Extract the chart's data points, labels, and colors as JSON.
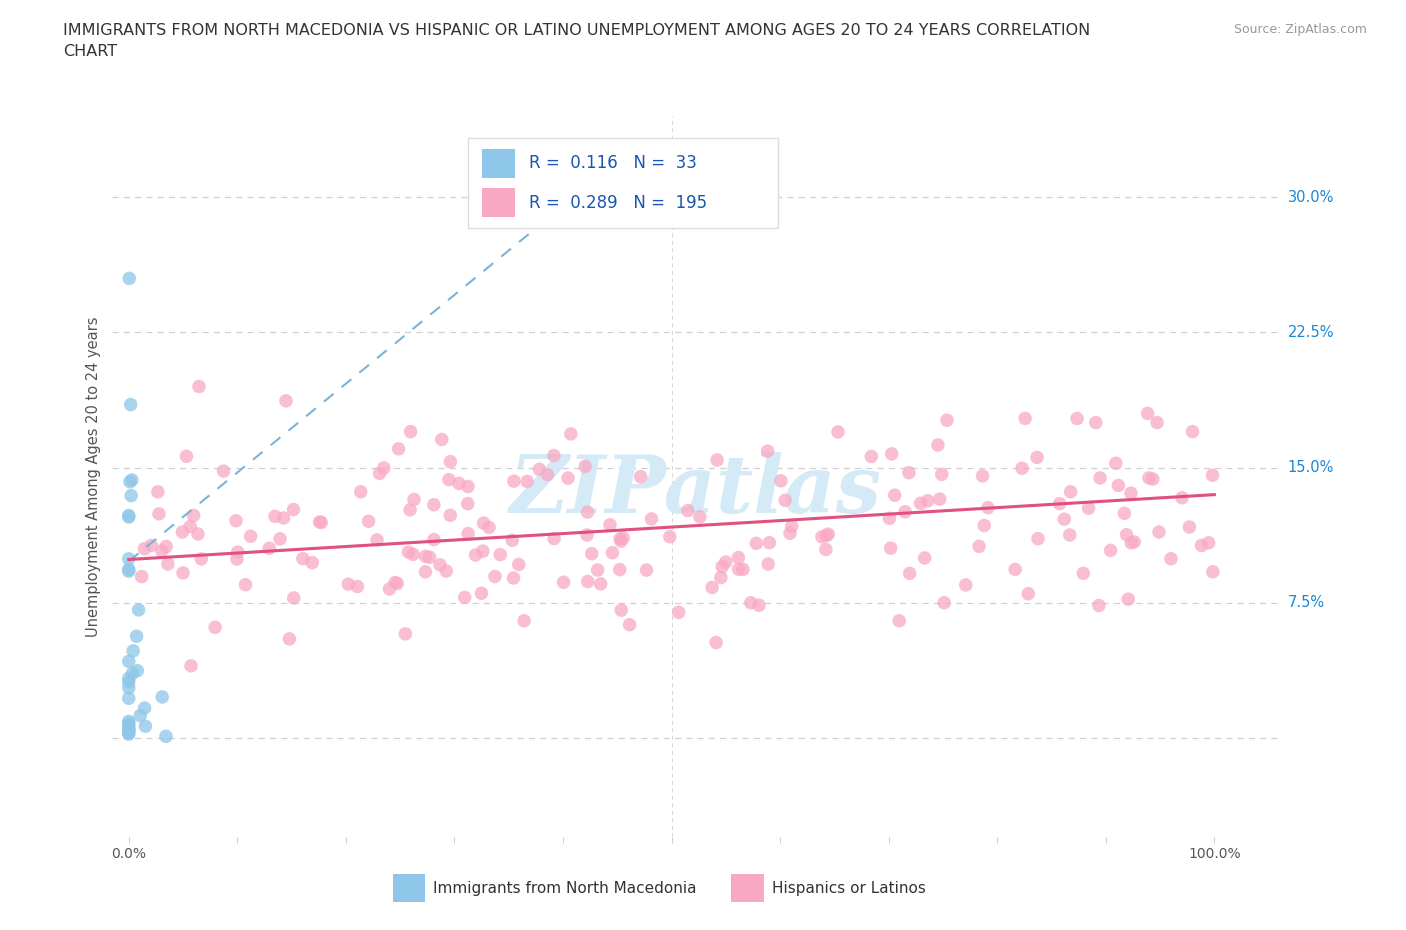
{
  "title": "IMMIGRANTS FROM NORTH MACEDONIA VS HISPANIC OR LATINO UNEMPLOYMENT AMONG AGES 20 TO 24 YEARS CORRELATION\nCHART",
  "source": "Source: ZipAtlas.com",
  "ylabel": "Unemployment Among Ages 20 to 24 years",
  "R_blue": 0.116,
  "N_blue": 33,
  "R_pink": 0.289,
  "N_pink": 195,
  "blue_color": "#8dc6e8",
  "pink_color": "#f9a8c4",
  "blue_line_color": "#7ab3d8",
  "pink_line_color": "#e05080",
  "watermark_color": "#d5eaf7",
  "background_color": "#ffffff",
  "grid_color": "#d0d0d0",
  "legend_edge_color": "#dddddd",
  "legend_text_color": "#1a56b0",
  "right_axis_color": "#1a87d4",
  "title_color": "#333333",
  "source_color": "#999999",
  "xtick_color": "#555555",
  "ytick_right_vals": [
    0.0,
    0.075,
    0.15,
    0.225,
    0.3
  ],
  "ytick_right_labels": [
    "",
    "7.5%",
    "15.0%",
    "22.5%",
    "30.0%"
  ],
  "xlim": [
    -0.015,
    1.06
  ],
  "ylim": [
    -0.055,
    0.345
  ],
  "blue_trendline_x": [
    0.0,
    0.42
  ],
  "blue_trendline_y": [
    0.098,
    0.305
  ],
  "pink_trendline_x": [
    0.0,
    1.0
  ],
  "pink_trendline_y": [
    0.099,
    0.135
  ]
}
